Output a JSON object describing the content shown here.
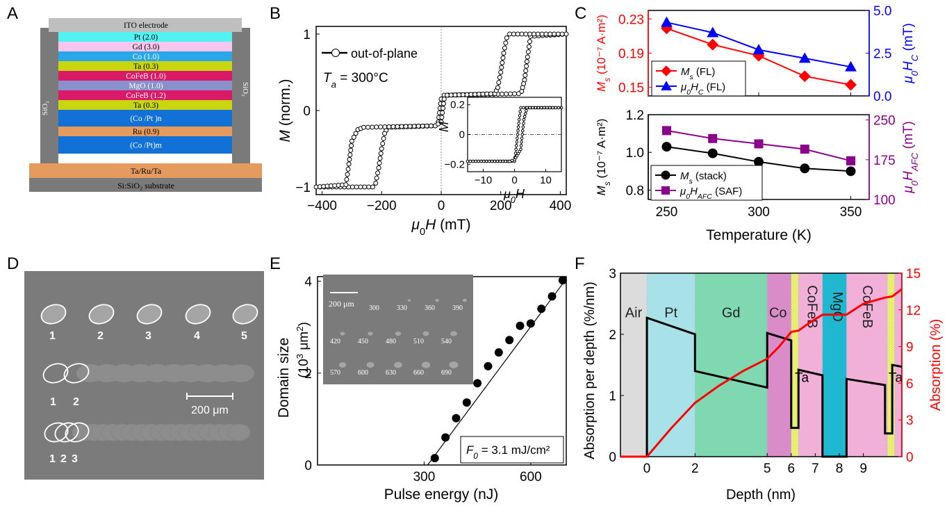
{
  "panels": {
    "A": "A",
    "B": "B",
    "C": "C",
    "D": "D",
    "E": "E",
    "F": "F"
  },
  "stack": {
    "layers": [
      {
        "label": "ITO electrode",
        "color": "#bfbfbf"
      },
      {
        "label": "Pt (2.0)",
        "color": "#52f2f2"
      },
      {
        "label": "Gd (3.0)",
        "color": "#f7c6ee"
      },
      {
        "label": "Co (1.0)",
        "color": "#29a7e8"
      },
      {
        "label": "Ta (0.3)",
        "color": "#c9d60f"
      },
      {
        "label": "CoFeB (1.0)",
        "color": "#d81a68"
      },
      {
        "label": "MgO (1.0)",
        "color": "#8a90c9"
      },
      {
        "label": "CoFeB (1.2)",
        "color": "#d81a68"
      },
      {
        "label": "Ta (0.3)",
        "color": "#c9d60f"
      },
      {
        "label": "(Co /Pt )n",
        "color": "#1171d6"
      },
      {
        "label": "Ru (0.9)",
        "color": "#e59a5e"
      },
      {
        "label": "(Co /Pt)m",
        "color": "#1171d6"
      }
    ],
    "side_left": "SiO₂",
    "side_right": "SiO₂",
    "base1": "Ta/Ru/Ta",
    "base2": "Si:SiO₂ substrate"
  },
  "chart_data": [
    {
      "panel": "B",
      "type": "line",
      "xlabel_mu": "μ",
      "xlabel_sub": "0",
      "xlabel_rest": "H (mT)",
      "ylabel_italic": "M",
      "ylabel_rest": " (norm.)",
      "xlim": [
        -420,
        420
      ],
      "ylim": [
        -1.1,
        1.1
      ],
      "xticks": [
        -400,
        -200,
        0,
        200,
        400
      ],
      "yticks": [
        -1,
        0,
        1
      ],
      "legend": "out-of-plane",
      "annotation_italic": "T",
      "annotation_sub": "a",
      "annotation_rest": " = 300°C",
      "descending": {
        "x": [
          420,
          300,
          290,
          280,
          270,
          260,
          10,
          0,
          -10,
          -20,
          -180,
          -190,
          -200,
          -210,
          -220,
          -230,
          -420
        ],
        "y": [
          1,
          0.97,
          0.7,
          0.4,
          0.25,
          0.22,
          0.2,
          0.15,
          -0.15,
          -0.2,
          -0.22,
          -0.3,
          -0.5,
          -0.75,
          -0.95,
          -1,
          -1
        ]
      },
      "ascending": {
        "x": [
          -420,
          -320,
          -310,
          -300,
          -280,
          -260,
          -20,
          0,
          10,
          20,
          180,
          190,
          200,
          210,
          220,
          230,
          420
        ],
        "y": [
          -1,
          -0.97,
          -0.7,
          -0.4,
          -0.25,
          -0.22,
          -0.2,
          -0.15,
          0.15,
          0.2,
          0.22,
          0.3,
          0.5,
          0.75,
          0.95,
          1,
          1
        ]
      },
      "inset": {
        "xlabel_mu": "μ",
        "xlabel_sub": "0",
        "xlabel_rest": "H",
        "ylabel": "M",
        "xlim": [
          -15,
          15
        ],
        "ylim": [
          -0.25,
          0.25
        ],
        "xticks": [
          -10,
          0,
          10
        ],
        "yticks": [
          -0.2,
          0,
          0.2
        ],
        "descending": {
          "x": [
            15,
            2,
            1.5,
            1,
            0.5,
            0,
            -15
          ],
          "y": [
            0.18,
            0.18,
            0.1,
            0,
            -0.1,
            -0.18,
            -0.18
          ]
        },
        "ascending": {
          "x": [
            -15,
            -2,
            -1.5,
            0,
            2,
            3,
            4,
            15
          ],
          "y": [
            -0.18,
            -0.18,
            -0.18,
            -0.17,
            -0.1,
            0.1,
            0.18,
            0.18
          ]
        }
      }
    },
    {
      "panel": "C-top",
      "type": "line",
      "x": [
        250,
        275,
        300,
        325,
        350
      ],
      "ylim_left": [
        0.14,
        0.24
      ],
      "yticks_left": [
        0.15,
        0.19,
        0.23
      ],
      "ylim_right": [
        0,
        5
      ],
      "yticks_right": [
        0,
        2.5,
        5
      ],
      "yticks_right_labels": [
        "0.0",
        "2.5",
        "5.0"
      ],
      "ylabel_left_italic": "M",
      "ylabel_left_sub": "s",
      "ylabel_left_rest": " (10⁻⁷ A·m²)",
      "ylabel_right_mu": "μ",
      "ylabel_right_sub": "0",
      "ylabel_right_rest": "H",
      "ylabel_right_sub2": "C",
      "ylabel_right_unit": " (mT)",
      "series": [
        {
          "name": "M",
          "name_sub": "s",
          "name_rest": " (FL)",
          "values": [
            0.219,
            0.2,
            0.187,
            0.163,
            0.153
          ],
          "color": "#ff0000",
          "marker": "diamond",
          "axis": "left"
        },
        {
          "name": "μ",
          "name_sub": "0",
          "name_rest": "H",
          "name_sub2": "C",
          "name_rest2": " (FL)",
          "values": [
            4.3,
            3.7,
            2.7,
            2.2,
            1.7
          ],
          "color": "#0000ff",
          "marker": "triangle",
          "axis": "right"
        }
      ]
    },
    {
      "panel": "C-bottom",
      "type": "line",
      "x": [
        250,
        275,
        300,
        325,
        350
      ],
      "xlim": [
        240,
        360
      ],
      "xticks": [
        250,
        300,
        350
      ],
      "xlabel": "Temperature (K)",
      "ylim_left": [
        0.75,
        1.2
      ],
      "yticks_left": [
        0.8,
        1.0,
        1.2
      ],
      "yticks_left_labels": [
        "0.8",
        "1.0",
        "1.2"
      ],
      "ylim_right": [
        100,
        260
      ],
      "yticks_right": [
        100,
        175,
        250
      ],
      "ylabel_left_italic": "M",
      "ylabel_left_sub": "s",
      "ylabel_left_rest": " (10⁻⁷ A·m²)",
      "ylabel_right_mu": "μ",
      "ylabel_right_sub": "0",
      "ylabel_right_rest": "H",
      "ylabel_right_sub2": "AFC",
      "ylabel_right_unit": " (mT)",
      "series": [
        {
          "name": "M",
          "name_sub": "s",
          "name_rest": " (stack)",
          "values": [
            1.03,
            0.995,
            0.95,
            0.915,
            0.9
          ],
          "color": "#000000",
          "marker": "circle",
          "axis": "left"
        },
        {
          "name": "μ",
          "name_sub": "0",
          "name_rest": "H",
          "name_sub2": "AFC",
          "name_rest2": " (SAF)",
          "values": [
            230,
            215,
            205,
            195,
            173
          ],
          "color": "#8b008b",
          "marker": "square",
          "axis": "right"
        }
      ]
    },
    {
      "panel": "E",
      "type": "scatter",
      "xlabel": "Pulse energy (nJ)",
      "ylabel": "Domain size",
      "ylabel_unit_pre": "(10",
      "ylabel_unit_sup": "3",
      "ylabel_unit_mid": " μm",
      "ylabel_unit_sup2": "2",
      "ylabel_unit_post": ")",
      "xlim": [
        0,
        700
      ],
      "ylim": [
        0,
        4.1
      ],
      "xticks": [
        300,
        600
      ],
      "yticks": [
        0,
        2,
        4
      ],
      "x": [
        330,
        360,
        390,
        420,
        450,
        480,
        510,
        540,
        570,
        600,
        630,
        660,
        690
      ],
      "y": [
        0.15,
        0.6,
        1.02,
        1.36,
        1.78,
        2.15,
        2.45,
        2.72,
        3.03,
        3.08,
        3.4,
        3.67,
        4.02
      ],
      "fit_line": {
        "x": [
          310,
          700
        ],
        "y": [
          0,
          4.05
        ]
      },
      "annotation_italic": "F",
      "annotation_sub": "0",
      "annotation_rest": " = 3.1 mJ/cm²",
      "inset_scale": "200 μm",
      "inset_labels": [
        "300",
        "330",
        "360",
        "390",
        "420",
        "450",
        "480",
        "510",
        "540",
        "570",
        "600",
        "630",
        "660",
        "690"
      ]
    },
    {
      "panel": "F",
      "type": "line",
      "xlabel": "Depth (nm)",
      "ylabel_left": "Absorption per depth (%/nm)",
      "ylabel_right": "Absorption (%)",
      "xlim": [
        -1.1,
        10.6
      ],
      "ylim_left": [
        0,
        3
      ],
      "ylim_right": [
        0,
        15
      ],
      "xticks": [
        0,
        2,
        5,
        6,
        7,
        8,
        9
      ],
      "yticks_left": [
        0,
        1,
        2,
        3
      ],
      "yticks_right": [
        0,
        3,
        6,
        9,
        12,
        15
      ],
      "regions": [
        {
          "label": "Air",
          "from": -1.1,
          "to": 0,
          "color": "#dcdcdc"
        },
        {
          "label": "Pt",
          "from": 0,
          "to": 2,
          "color": "#a8e2e8"
        },
        {
          "label": "Gd",
          "from": 2,
          "to": 5,
          "color": "#80d8b0"
        },
        {
          "label": "Co",
          "from": 5,
          "to": 6,
          "color": "#d98cc8"
        },
        {
          "label": "",
          "from": 6,
          "to": 6.3,
          "color": "#e8ee70"
        },
        {
          "label": "CoFeB",
          "from": 6.3,
          "to": 7.3,
          "color": "#f0b0d8"
        },
        {
          "label": "MgO",
          "from": 7.3,
          "to": 8.3,
          "color": "#20b8d0"
        },
        {
          "label": "CoFeB",
          "from": 8.3,
          "to": 10.0,
          "color": "#f0b0d8"
        },
        {
          "label": "",
          "from": 10.0,
          "to": 10.3,
          "color": "#e8ee70"
        },
        {
          "label": "",
          "from": 10.3,
          "to": 10.6,
          "color": "#f0b0d8"
        }
      ],
      "ta_labels": [
        "Ta",
        "Ta"
      ],
      "per_depth": {
        "x": [
          -1.1,
          0,
          0,
          2,
          2,
          5,
          5,
          6,
          6,
          6.3,
          6.3,
          7.3,
          7.3,
          8.3,
          8.3,
          9.9,
          9.9,
          10.2,
          10.2,
          10.6
        ],
        "y": [
          0,
          0,
          2.27,
          2.0,
          1.4,
          1.13,
          2.02,
          1.9,
          0.47,
          0.47,
          1.42,
          1.33,
          0,
          0,
          1.27,
          1.17,
          0.38,
          0.38,
          1.5,
          1.47
        ]
      },
      "cumulative": {
        "x": [
          -1.1,
          0,
          1,
          2,
          3,
          4,
          5,
          5.5,
          6,
          6.3,
          6.8,
          7.3,
          8.3,
          9,
          9.9,
          10.2,
          10.6
        ],
        "y": [
          0,
          0,
          2.3,
          4.4,
          5.8,
          7.0,
          8.0,
          9.0,
          10.2,
          10.3,
          11.0,
          11.6,
          11.6,
          12.5,
          13.0,
          13.1,
          13.7
        ]
      }
    }
  ],
  "panelD": {
    "labels_row1": [
      "1",
      "2",
      "3",
      "4",
      "5"
    ],
    "labels_row2": [
      "1",
      "2"
    ],
    "labels_row3": [
      "1",
      "2",
      "3"
    ],
    "scale": "200 μm"
  }
}
